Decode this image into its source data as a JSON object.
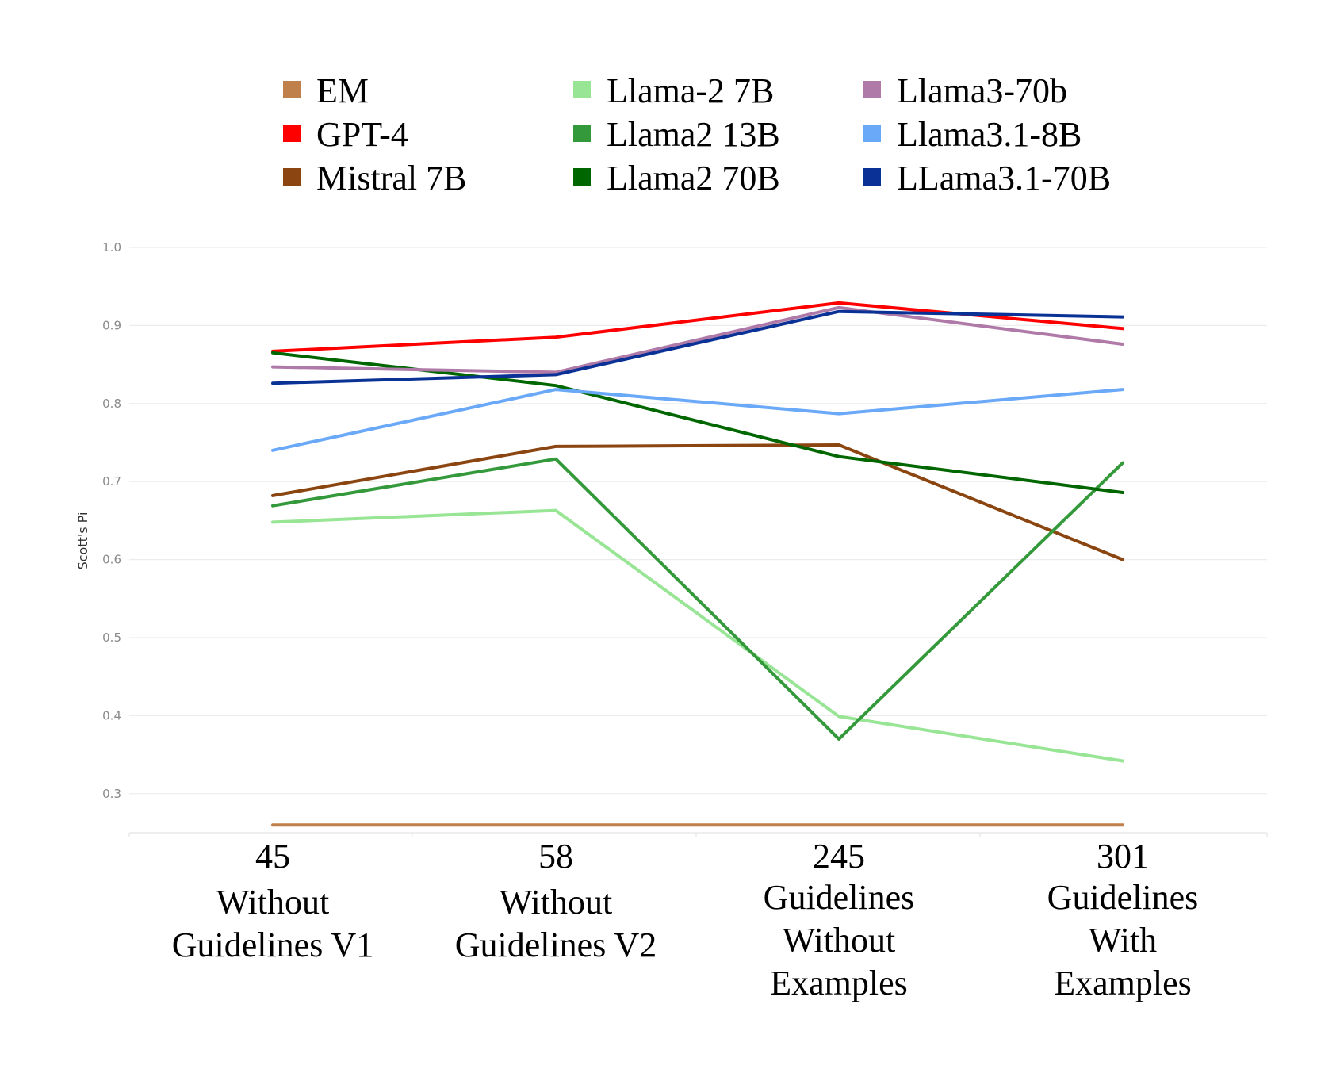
{
  "chart_data": {
    "type": "line",
    "title": "",
    "xlabel": "",
    "ylabel": "Scott's Pi",
    "ylim": [
      0.25,
      1.0
    ],
    "yticks": [
      "0.3",
      "0.4",
      "0.5",
      "0.6",
      "0.7",
      "0.8",
      "0.9",
      "1.0"
    ],
    "grid": true,
    "legend_position": "top",
    "categories": [
      {
        "number": "45",
        "lines": [
          "Without",
          "Guidelines V1"
        ]
      },
      {
        "number": "58",
        "lines": [
          "Without",
          "Guidelines V2"
        ]
      },
      {
        "number": "245",
        "lines": [
          "Guidelines",
          "Without",
          "Examples"
        ]
      },
      {
        "number": "301",
        "lines": [
          "Guidelines",
          "With",
          "Examples"
        ]
      }
    ],
    "series": [
      {
        "name": "EM",
        "color": "#c0804c",
        "values": [
          0.26,
          0.26,
          0.26,
          0.26
        ]
      },
      {
        "name": "GPT-4",
        "color": "#ff0000",
        "values": [
          0.867,
          0.885,
          0.929,
          0.896
        ]
      },
      {
        "name": "Mistral 7B",
        "color": "#8b4510",
        "values": [
          0.682,
          0.745,
          0.747,
          0.6
        ]
      },
      {
        "name": "Llama-2 7B",
        "color": "#98e596",
        "values": [
          0.648,
          0.663,
          0.399,
          0.342
        ]
      },
      {
        "name": "Llama2 13B",
        "color": "#33993a",
        "values": [
          0.669,
          0.729,
          0.37,
          0.724
        ]
      },
      {
        "name": "Llama2 70B",
        "color": "#006600",
        "values": [
          0.865,
          0.823,
          0.732,
          0.686
        ]
      },
      {
        "name": "Llama3-70b",
        "color": "#b07aa8",
        "values": [
          0.847,
          0.84,
          0.923,
          0.876
        ]
      },
      {
        "name": "Llama3.1-8B",
        "color": "#6aa8f8",
        "values": [
          0.74,
          0.818,
          0.787,
          0.818
        ]
      },
      {
        "name": "LLama3.1-70B",
        "color": "#0a3296",
        "values": [
          0.826,
          0.837,
          0.918,
          0.911
        ]
      }
    ]
  }
}
